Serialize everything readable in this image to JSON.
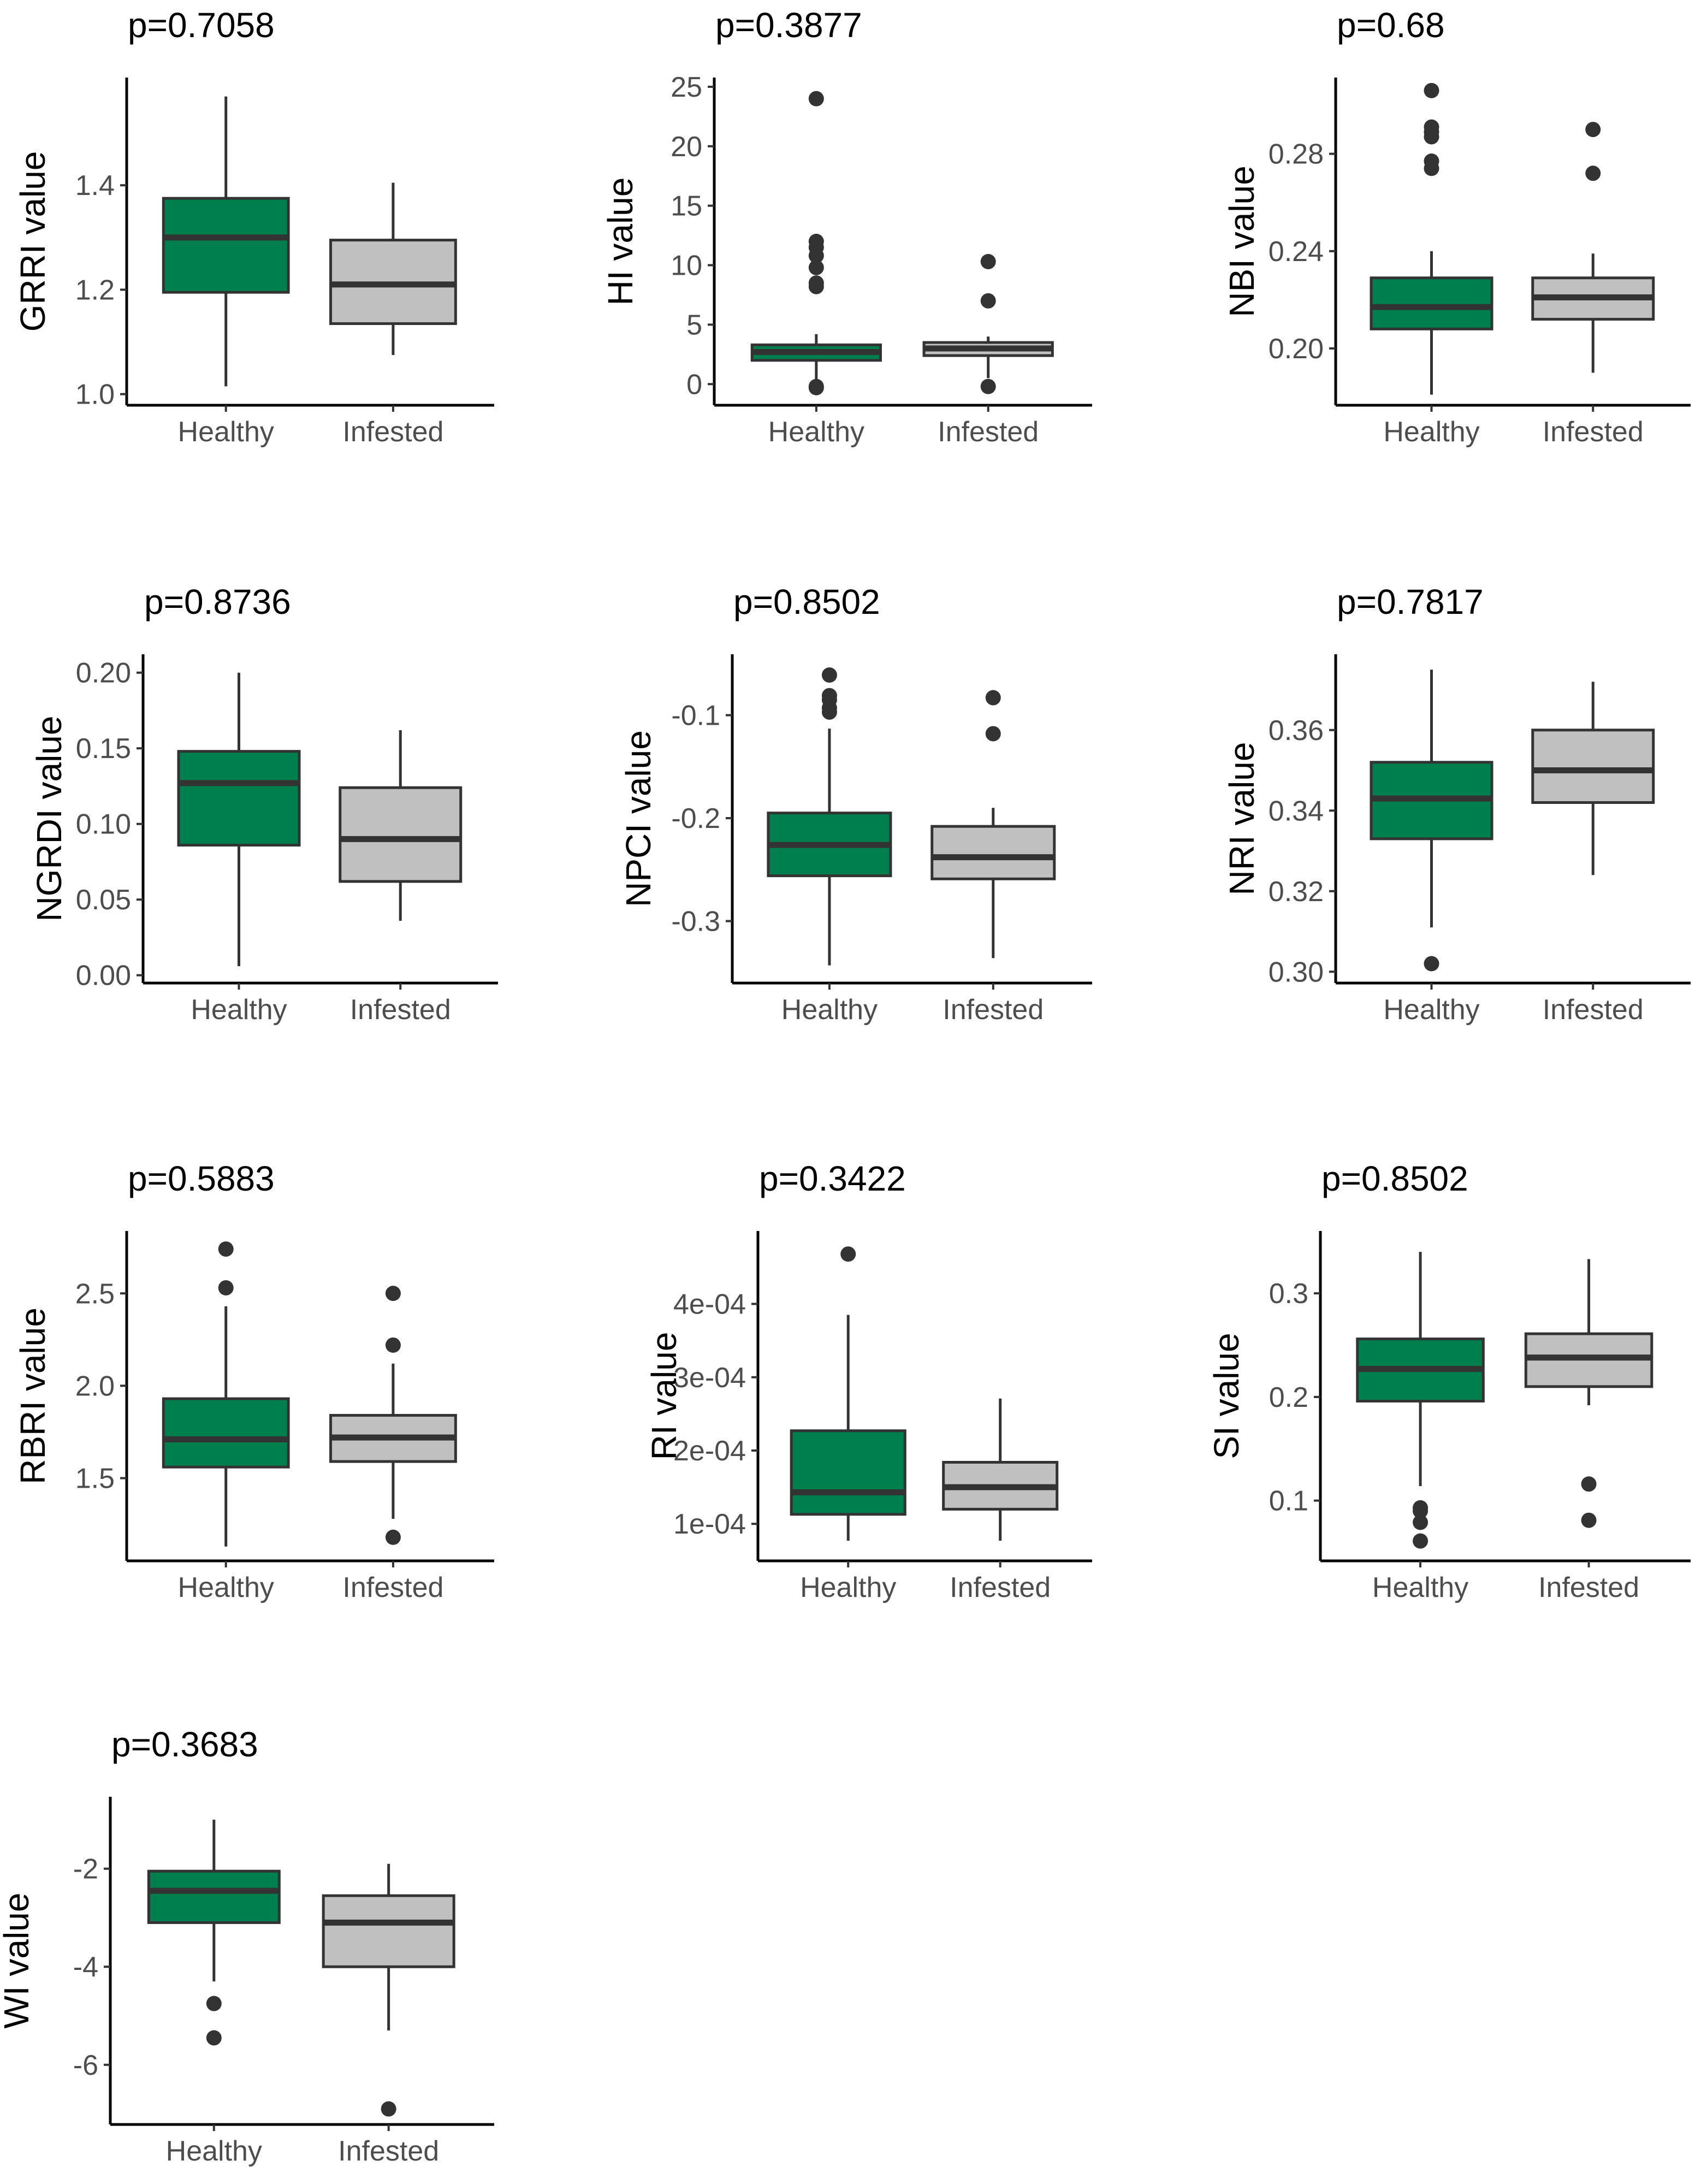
{
  "colors": {
    "healthy": "#007f4e",
    "infested": "#c0c0c0",
    "ink": "#333333"
  },
  "chart_data": [
    {
      "type": "box",
      "title": "p=0.7058",
      "ylabel": "GRRI value",
      "categories": [
        "Healthy",
        "Infested"
      ],
      "ylim": [
        0.985,
        1.6
      ],
      "yticks": [
        1.0,
        1.2,
        1.4
      ],
      "ytick_labels": [
        "1.0",
        "1.2",
        "1.4"
      ],
      "series": [
        {
          "name": "Healthy",
          "whisker_low": 1.015,
          "q1": 1.195,
          "median": 1.3,
          "q3": 1.375,
          "whisker_high": 1.57,
          "outliers": []
        },
        {
          "name": "Infested",
          "whisker_low": 1.075,
          "q1": 1.135,
          "median": 1.21,
          "q3": 1.295,
          "whisker_high": 1.405,
          "outliers": []
        }
      ]
    },
    {
      "type": "box",
      "title": "p=0.3877",
      "ylabel": "HI value",
      "categories": [
        "Healthy",
        "Infested"
      ],
      "ylim": [
        -1.5,
        25.5
      ],
      "yticks": [
        0,
        5,
        10,
        15,
        20,
        25
      ],
      "ytick_labels": [
        "0",
        "5",
        "10",
        "15",
        "20",
        "25"
      ],
      "series": [
        {
          "name": "Healthy",
          "whisker_low": 0.0,
          "q1": 2.0,
          "median": 2.7,
          "q3": 3.3,
          "whisker_high": 4.2,
          "outliers": [
            24.0,
            12.0,
            11.5,
            10.8,
            9.8,
            8.5,
            8.2,
            -0.2,
            -0.3
          ]
        },
        {
          "name": "Infested",
          "whisker_low": 0.5,
          "q1": 2.4,
          "median": 3.0,
          "q3": 3.5,
          "whisker_high": 4.0,
          "outliers": [
            10.3,
            7.0,
            -0.2
          ]
        }
      ]
    },
    {
      "type": "box",
      "title": "p=0.68",
      "ylabel": "NBI value",
      "categories": [
        "Healthy",
        "Infested"
      ],
      "ylim": [
        0.178,
        0.31
      ],
      "yticks": [
        0.2,
        0.24,
        0.28
      ],
      "ytick_labels": [
        "0.20",
        "0.24",
        "0.28"
      ],
      "series": [
        {
          "name": "Healthy",
          "whisker_low": 0.181,
          "q1": 0.208,
          "median": 0.217,
          "q3": 0.229,
          "whisker_high": 0.24,
          "outliers": [
            0.306,
            0.291,
            0.289,
            0.287,
            0.277,
            0.274
          ]
        },
        {
          "name": "Infested",
          "whisker_low": 0.19,
          "q1": 0.212,
          "median": 0.221,
          "q3": 0.229,
          "whisker_high": 0.239,
          "outliers": [
            0.29,
            0.272
          ]
        }
      ]
    },
    {
      "type": "box",
      "title": "p=0.8736",
      "ylabel": "NGRDI value",
      "categories": [
        "Healthy",
        "Infested"
      ],
      "ylim": [
        -0.003,
        0.21
      ],
      "yticks": [
        0.0,
        0.05,
        0.1,
        0.15,
        0.2
      ],
      "ytick_labels": [
        "0.00",
        "0.05",
        "0.10",
        "0.15",
        "0.20"
      ],
      "series": [
        {
          "name": "Healthy",
          "whisker_low": 0.006,
          "q1": 0.086,
          "median": 0.127,
          "q3": 0.148,
          "whisker_high": 0.2,
          "outliers": []
        },
        {
          "name": "Infested",
          "whisker_low": 0.036,
          "q1": 0.062,
          "median": 0.09,
          "q3": 0.124,
          "whisker_high": 0.162,
          "outliers": []
        }
      ]
    },
    {
      "type": "box",
      "title": "p=0.8502",
      "ylabel": "NPCI value",
      "categories": [
        "Healthy",
        "Infested"
      ],
      "ylim": [
        -0.357,
        -0.044
      ],
      "yticks": [
        -0.3,
        -0.2,
        -0.1
      ],
      "ytick_labels": [
        "-0.3",
        "-0.2",
        "-0.1"
      ],
      "series": [
        {
          "name": "Healthy",
          "whisker_low": -0.343,
          "q1": -0.256,
          "median": -0.226,
          "q3": -0.195,
          "whisker_high": -0.113,
          "outliers": [
            -0.061,
            -0.081,
            -0.085,
            -0.093,
            -0.097
          ]
        },
        {
          "name": "Infested",
          "whisker_low": -0.336,
          "q1": -0.259,
          "median": -0.238,
          "q3": -0.208,
          "whisker_high": -0.19,
          "outliers": [
            -0.083,
            -0.118
          ]
        }
      ]
    },
    {
      "type": "box",
      "title": "p=0.7817",
      "ylabel": "NRI value",
      "categories": [
        "Healthy",
        "Infested"
      ],
      "ylim": [
        0.298,
        0.378
      ],
      "yticks": [
        0.3,
        0.32,
        0.34,
        0.36
      ],
      "ytick_labels": [
        "0.30",
        "0.32",
        "0.34",
        "0.36"
      ],
      "series": [
        {
          "name": "Healthy",
          "whisker_low": 0.311,
          "q1": 0.333,
          "median": 0.343,
          "q3": 0.352,
          "whisker_high": 0.375,
          "outliers": [
            0.302
          ]
        },
        {
          "name": "Infested",
          "whisker_low": 0.324,
          "q1": 0.342,
          "median": 0.35,
          "q3": 0.36,
          "whisker_high": 0.372,
          "outliers": []
        }
      ]
    },
    {
      "type": "box",
      "title": "p=0.5883",
      "ylabel": "RBRI value",
      "categories": [
        "Healthy",
        "Infested"
      ],
      "ylim": [
        1.07,
        2.82
      ],
      "yticks": [
        1.5,
        2.0,
        2.5
      ],
      "ytick_labels": [
        "1.5",
        "2.0",
        "2.5"
      ],
      "series": [
        {
          "name": "Healthy",
          "whisker_low": 1.13,
          "q1": 1.56,
          "median": 1.71,
          "q3": 1.93,
          "whisker_high": 2.43,
          "outliers": [
            2.74,
            2.53
          ]
        },
        {
          "name": "Infested",
          "whisker_low": 1.28,
          "q1": 1.59,
          "median": 1.72,
          "q3": 1.84,
          "whisker_high": 2.12,
          "outliers": [
            2.5,
            2.22,
            1.18
          ]
        }
      ]
    },
    {
      "type": "box",
      "title": "p=0.3422",
      "ylabel": "RI value",
      "categories": [
        "Healthy",
        "Infested"
      ],
      "ylim": [
        5.4e-05,
        0.000495
      ],
      "yticks": [
        0.0001,
        0.0002,
        0.0003,
        0.0004
      ],
      "ytick_labels": [
        "1e-04",
        "2e-04",
        "3e-04",
        "4e-04"
      ],
      "series": [
        {
          "name": "Healthy",
          "whisker_low": 7.7e-05,
          "q1": 0.000113,
          "median": 0.000143,
          "q3": 0.000227,
          "whisker_high": 0.000385,
          "outliers": [
            0.000468
          ]
        },
        {
          "name": "Infested",
          "whisker_low": 7.7e-05,
          "q1": 0.00012,
          "median": 0.00015,
          "q3": 0.000184,
          "whisker_high": 0.000271,
          "outliers": []
        }
      ]
    },
    {
      "type": "box",
      "title": "p=0.8502",
      "ylabel": "SI value",
      "categories": [
        "Healthy",
        "Infested"
      ],
      "ylim": [
        0.045,
        0.357
      ],
      "yticks": [
        0.1,
        0.2,
        0.3
      ],
      "ytick_labels": [
        "0.1",
        "0.2",
        "0.3"
      ],
      "series": [
        {
          "name": "Healthy",
          "whisker_low": 0.114,
          "q1": 0.196,
          "median": 0.227,
          "q3": 0.256,
          "whisker_high": 0.34,
          "outliers": [
            0.093,
            0.09,
            0.079,
            0.061
          ]
        },
        {
          "name": "Infested",
          "whisker_low": 0.192,
          "q1": 0.21,
          "median": 0.238,
          "q3": 0.261,
          "whisker_high": 0.333,
          "outliers": [
            0.116,
            0.081
          ]
        }
      ]
    },
    {
      "type": "box",
      "title": "p=0.3683",
      "ylabel": "WI value",
      "categories": [
        "Healthy",
        "Infested"
      ],
      "ylim": [
        -7.15,
        -0.6
      ],
      "yticks": [
        -6,
        -4,
        -2
      ],
      "ytick_labels": [
        "-6",
        "-4",
        "-2"
      ],
      "series": [
        {
          "name": "Healthy",
          "whisker_low": -4.3,
          "q1": -3.1,
          "median": -2.45,
          "q3": -2.05,
          "whisker_high": -1.0,
          "outliers": [
            -4.75,
            -5.45
          ]
        },
        {
          "name": "Infested",
          "whisker_low": -5.3,
          "q1": -4.0,
          "median": -3.1,
          "q3": -2.55,
          "whisker_high": -1.9,
          "outliers": [
            -6.9
          ]
        }
      ]
    }
  ]
}
